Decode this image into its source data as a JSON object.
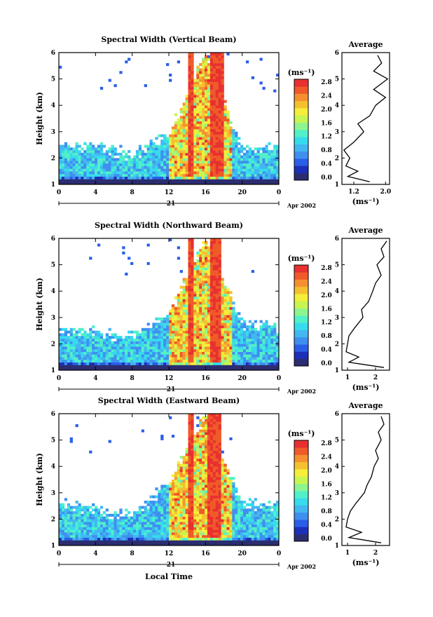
{
  "panels": [
    {
      "id": "vertical",
      "title": "Spectral Width (Vertical Beam)",
      "ylabel": "Height (km)",
      "ylim": [
        1,
        6
      ],
      "xlim": [
        0,
        24
      ],
      "x_ticks": [
        "0",
        "4",
        "8",
        "12",
        "16",
        "20",
        "0"
      ],
      "y_ticks": [
        "1",
        "2",
        "3",
        "4",
        "5",
        "6"
      ],
      "date_day": "21",
      "date_month": "Apr 2002",
      "colorbar_unit": "(ms⁻¹)",
      "colorbar_ticks": [
        "0.0",
        "0.4",
        "0.8",
        "1.2",
        "1.6",
        "2.0",
        "2.4",
        "2.8"
      ],
      "profile_title": "Average",
      "profile_xlabel": "(ms⁻¹)",
      "profile_x_ticks": [
        "1.2",
        "2.0"
      ],
      "profile_y_ticks": [
        "1",
        "2",
        "3",
        "4",
        "5",
        "6"
      ]
    },
    {
      "id": "northward",
      "title": "Spectral Width (Northward Beam)",
      "ylabel": "Height (km)",
      "ylim": [
        1,
        6
      ],
      "xlim": [
        0,
        24
      ],
      "x_ticks": [
        "0",
        "4",
        "8",
        "12",
        "16",
        "20",
        "0"
      ],
      "y_ticks": [
        "1",
        "2",
        "3",
        "4",
        "5",
        "6"
      ],
      "date_day": "21",
      "date_month": "Apr 2002",
      "colorbar_unit": "(ms⁻¹)",
      "colorbar_ticks": [
        "0.0",
        "0.4",
        "0.8",
        "1.2",
        "1.6",
        "2.0",
        "2.4",
        "2.8"
      ],
      "profile_title": "Average",
      "profile_xlabel": "(ms⁻¹)",
      "profile_x_ticks": [
        "1",
        "2"
      ],
      "profile_y_ticks": [
        "1",
        "2",
        "3",
        "4",
        "5",
        "6"
      ]
    },
    {
      "id": "eastward",
      "title": "Spectral Width (Eastward Beam)",
      "ylabel": "Height (km)",
      "ylim": [
        1,
        6
      ],
      "xlim": [
        0,
        24
      ],
      "x_ticks": [
        "0",
        "4",
        "8",
        "12",
        "16",
        "20",
        "0"
      ],
      "y_ticks": [
        "1",
        "2",
        "3",
        "4",
        "5",
        "6"
      ],
      "date_day": "21",
      "date_month": "Apr 2002",
      "colorbar_unit": "(ms⁻¹)",
      "colorbar_ticks": [
        "0.0",
        "0.4",
        "0.8",
        "1.2",
        "1.6",
        "2.0",
        "2.4",
        "2.8"
      ],
      "profile_title": "Average",
      "profile_xlabel": "(ms⁻¹)",
      "profile_x_ticks": [
        "1",
        "2"
      ],
      "profile_y_ticks": [
        "1",
        "2",
        "3",
        "4",
        "5",
        "6"
      ]
    }
  ],
  "xlabel_bottom": "Local Time",
  "colorscale": [
    "#2c2c70",
    "#1c2fb8",
    "#2a5ee8",
    "#3f8ff0",
    "#42b7f0",
    "#36dcec",
    "#52f0c8",
    "#8ef58e",
    "#c8f552",
    "#f5ee3a",
    "#f5c030",
    "#f59030",
    "#f05a28",
    "#e83030"
  ],
  "chart_data": [
    {
      "type": "heatmap",
      "title": "Spectral Width (Vertical Beam)",
      "xlabel": "Local Time",
      "ylabel": "Height (km)",
      "xlim": [
        0,
        24
      ],
      "ylim": [
        1,
        6
      ],
      "colorbar": {
        "unit": "ms^-1",
        "range": [
          0.0,
          2.8
        ]
      },
      "layers_top_km": [
        [
          0,
          2.5
        ],
        [
          4,
          2.5
        ],
        [
          8,
          2.2
        ],
        [
          12,
          2.9
        ],
        [
          16,
          6.0
        ],
        [
          20,
          2.4
        ],
        [
          24,
          2.5
        ]
      ],
      "high_width_columns_hours": [
        [
          14.0,
          14.8
        ],
        [
          16.4,
          18.0
        ]
      ],
      "profile": {
        "title": "Average",
        "xlim": [
          0.9,
          2.1
        ],
        "height_km": [
          1.1,
          1.3,
          1.5,
          1.7,
          2.0,
          2.3,
          2.6,
          3.0,
          3.3,
          3.6,
          4.0,
          4.3,
          4.6,
          5.0,
          5.3,
          5.6,
          5.9
        ],
        "width": [
          1.6,
          1.05,
          1.3,
          1.0,
          1.1,
          0.95,
          1.2,
          1.45,
          1.3,
          1.6,
          1.75,
          2.0,
          1.7,
          2.05,
          1.7,
          1.9,
          1.8
        ]
      }
    },
    {
      "type": "heatmap",
      "title": "Spectral Width (Northward Beam)",
      "xlabel": "Local Time",
      "ylabel": "Height (km)",
      "xlim": [
        0,
        24
      ],
      "ylim": [
        1,
        6
      ],
      "colorbar": {
        "unit": "ms^-1",
        "range": [
          0.0,
          2.8
        ]
      },
      "layers_top_km": [
        [
          0,
          2.6
        ],
        [
          4,
          2.5
        ],
        [
          8,
          2.3
        ],
        [
          12,
          3.2
        ],
        [
          16,
          6.0
        ],
        [
          20,
          2.8
        ],
        [
          24,
          2.7
        ]
      ],
      "high_width_columns_hours": [
        [
          14.0,
          14.8
        ],
        [
          16.4,
          17.8
        ]
      ],
      "profile": {
        "title": "Average",
        "xlim": [
          0.8,
          2.5
        ],
        "height_km": [
          1.1,
          1.3,
          1.5,
          1.7,
          2.0,
          2.3,
          2.6,
          3.0,
          3.3,
          3.6,
          4.0,
          4.3,
          4.6,
          5.0,
          5.3,
          5.6,
          5.9
        ],
        "width": [
          2.3,
          1.05,
          1.4,
          0.95,
          1.0,
          1.05,
          1.25,
          1.55,
          1.5,
          1.75,
          1.9,
          2.0,
          2.2,
          2.05,
          2.3,
          2.2,
          2.4
        ]
      }
    },
    {
      "type": "heatmap",
      "title": "Spectral Width (Eastward Beam)",
      "xlabel": "Local Time",
      "ylabel": "Height (km)",
      "xlim": [
        0,
        24
      ],
      "ylim": [
        1,
        6
      ],
      "colorbar": {
        "unit": "ms^-1",
        "range": [
          0.0,
          2.8
        ]
      },
      "layers_top_km": [
        [
          0,
          2.7
        ],
        [
          4,
          2.4
        ],
        [
          8,
          2.2
        ],
        [
          12,
          3.4
        ],
        [
          16,
          6.0
        ],
        [
          20,
          2.6
        ],
        [
          24,
          2.6
        ]
      ],
      "high_width_columns_hours": [
        [
          14.0,
          14.8
        ],
        [
          16.2,
          17.8
        ]
      ],
      "profile": {
        "title": "Average",
        "xlim": [
          0.8,
          2.5
        ],
        "height_km": [
          1.1,
          1.3,
          1.5,
          1.7,
          2.0,
          2.3,
          2.6,
          3.0,
          3.3,
          3.6,
          4.0,
          4.3,
          4.6,
          5.0,
          5.3,
          5.6,
          5.9
        ],
        "width": [
          2.2,
          1.05,
          1.5,
          0.95,
          1.0,
          1.1,
          1.3,
          1.6,
          1.7,
          1.85,
          1.95,
          2.1,
          2.0,
          2.2,
          2.1,
          2.3,
          2.2
        ]
      }
    }
  ]
}
